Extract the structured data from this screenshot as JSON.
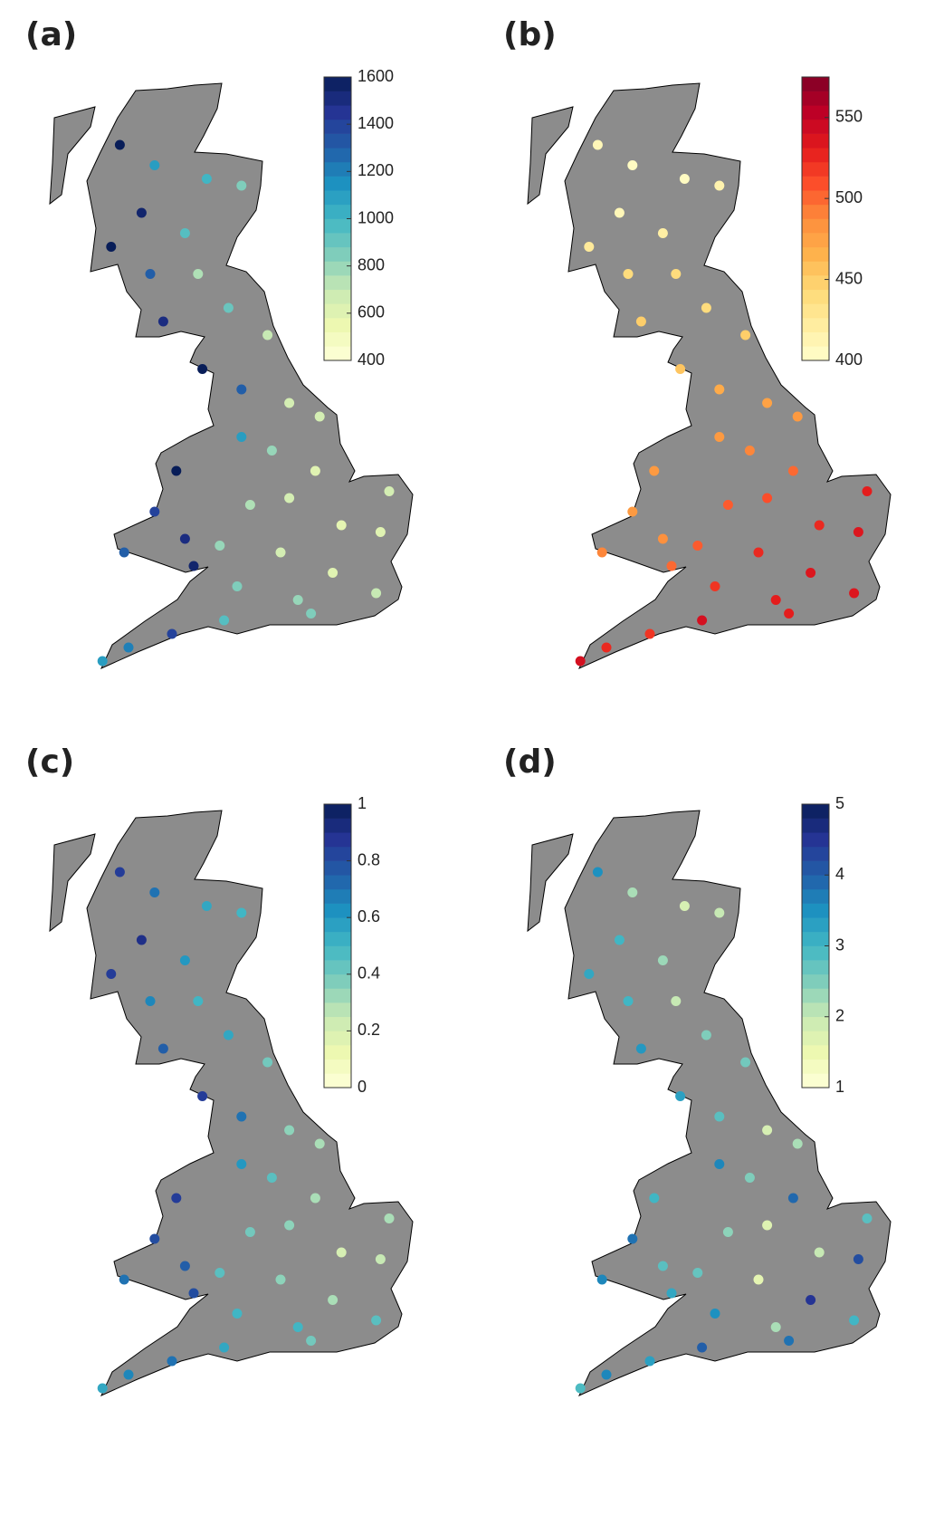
{
  "stations": [
    {
      "lon": -4.2,
      "lat": 57.5
    },
    {
      "lon": -5.0,
      "lat": 57.8
    },
    {
      "lon": -3.0,
      "lat": 57.3
    },
    {
      "lon": -2.2,
      "lat": 57.2
    },
    {
      "lon": -4.5,
      "lat": 56.8
    },
    {
      "lon": -3.5,
      "lat": 56.5
    },
    {
      "lon": -5.2,
      "lat": 56.3
    },
    {
      "lon": -4.3,
      "lat": 55.9
    },
    {
      "lon": -3.2,
      "lat": 55.9
    },
    {
      "lon": -4.0,
      "lat": 55.2
    },
    {
      "lon": -2.5,
      "lat": 55.4
    },
    {
      "lon": -3.1,
      "lat": 54.5
    },
    {
      "lon": -1.6,
      "lat": 55.0
    },
    {
      "lon": -2.2,
      "lat": 54.2
    },
    {
      "lon": -1.1,
      "lat": 54.0
    },
    {
      "lon": -0.4,
      "lat": 53.8
    },
    {
      "lon": -2.2,
      "lat": 53.5
    },
    {
      "lon": -1.5,
      "lat": 53.3
    },
    {
      "lon": -0.5,
      "lat": 53.0
    },
    {
      "lon": -3.7,
      "lat": 53.0
    },
    {
      "lon": -4.2,
      "lat": 52.4
    },
    {
      "lon": -3.5,
      "lat": 52.0
    },
    {
      "lon": -4.9,
      "lat": 51.8
    },
    {
      "lon": -3.3,
      "lat": 51.6
    },
    {
      "lon": -2.0,
      "lat": 52.5
    },
    {
      "lon": -1.1,
      "lat": 52.6
    },
    {
      "lon": 0.1,
      "lat": 52.2
    },
    {
      "lon": 1.2,
      "lat": 52.7
    },
    {
      "lon": 1.0,
      "lat": 52.1
    },
    {
      "lon": -1.3,
      "lat": 51.8
    },
    {
      "lon": -0.1,
      "lat": 51.5
    },
    {
      "lon": 0.9,
      "lat": 51.2
    },
    {
      "lon": -0.9,
      "lat": 51.1
    },
    {
      "lon": -2.3,
      "lat": 51.3
    },
    {
      "lon": -2.6,
      "lat": 50.8
    },
    {
      "lon": -3.8,
      "lat": 50.6
    },
    {
      "lon": -4.8,
      "lat": 50.4
    },
    {
      "lon": -5.4,
      "lat": 50.2
    },
    {
      "lon": -2.7,
      "lat": 51.9
    },
    {
      "lon": -0.6,
      "lat": 50.9
    }
  ],
  "panels": [
    {
      "label": "(a)",
      "colormap": [
        "#ffffd9",
        "#edf8b1",
        "#c7e9b4",
        "#7fcdbb",
        "#41b6c4",
        "#1d91c0",
        "#225ea8",
        "#253494",
        "#081d58"
      ],
      "clim": [
        400,
        1600
      ],
      "cticks": [
        400,
        600,
        800,
        1000,
        1200,
        1400,
        1600
      ],
      "values": [
        1100,
        1600,
        1000,
        850,
        1550,
        950,
        1600,
        1300,
        750,
        1500,
        900,
        1600,
        700,
        1300,
        650,
        650,
        1100,
        800,
        600,
        1600,
        1400,
        1500,
        1300,
        1550,
        750,
        650,
        580,
        650,
        600,
        650,
        600,
        700,
        800,
        850,
        950,
        1400,
        1200,
        1100,
        800,
        850
      ]
    },
    {
      "label": "(b)",
      "colormap": [
        "#ffffcc",
        "#ffeda0",
        "#fed976",
        "#feb24c",
        "#fd8d3c",
        "#fc4e2a",
        "#e31a1c",
        "#bd0026",
        "#800026"
      ],
      "clim": [
        400,
        575
      ],
      "cticks": [
        400,
        450,
        500,
        550
      ],
      "values": [
        405,
        410,
        405,
        415,
        410,
        420,
        425,
        440,
        440,
        450,
        440,
        455,
        450,
        470,
        475,
        480,
        480,
        490,
        500,
        480,
        480,
        485,
        490,
        500,
        505,
        510,
        525,
        530,
        535,
        525,
        535,
        535,
        530,
        520,
        540,
        520,
        525,
        540,
        505,
        530
      ]
    },
    {
      "label": "(c)",
      "colormap": [
        "#ffffd9",
        "#edf8b1",
        "#c7e9b4",
        "#7fcdbb",
        "#41b6c4",
        "#1d91c0",
        "#225ea8",
        "#253494",
        "#081d58"
      ],
      "clim": [
        0,
        1
      ],
      "cticks": [
        0,
        0.2,
        0.4,
        0.6,
        0.8,
        1
      ],
      "values": [
        0.7,
        0.85,
        0.55,
        0.5,
        0.9,
        0.6,
        0.85,
        0.65,
        0.5,
        0.75,
        0.55,
        0.85,
        0.4,
        0.7,
        0.35,
        0.3,
        0.6,
        0.45,
        0.3,
        0.85,
        0.8,
        0.75,
        0.7,
        0.8,
        0.4,
        0.35,
        0.2,
        0.3,
        0.25,
        0.35,
        0.3,
        0.45,
        0.5,
        0.5,
        0.55,
        0.7,
        0.65,
        0.55,
        0.45,
        0.4
      ]
    },
    {
      "label": "(d)",
      "colormap": [
        "#ffffd9",
        "#edf8b1",
        "#c7e9b4",
        "#7fcdbb",
        "#41b6c4",
        "#1d91c0",
        "#225ea8",
        "#253494",
        "#081d58"
      ],
      "clim": [
        1,
        5
      ],
      "cticks": [
        1,
        2,
        3,
        4,
        5
      ],
      "values": [
        2.2,
        3.5,
        1.8,
        2.0,
        3.0,
        2.3,
        3.2,
        3.0,
        2.0,
        3.4,
        2.5,
        3.3,
        2.6,
        2.8,
        1.8,
        2.2,
        3.6,
        2.5,
        3.9,
        3.0,
        3.8,
        2.8,
        3.6,
        3.2,
        2.4,
        1.7,
        2.0,
        2.8,
        4.2,
        1.6,
        4.5,
        3.0,
        2.2,
        3.5,
        4.0,
        3.3,
        3.6,
        2.9,
        2.7,
        3.8
      ]
    }
  ]
}
